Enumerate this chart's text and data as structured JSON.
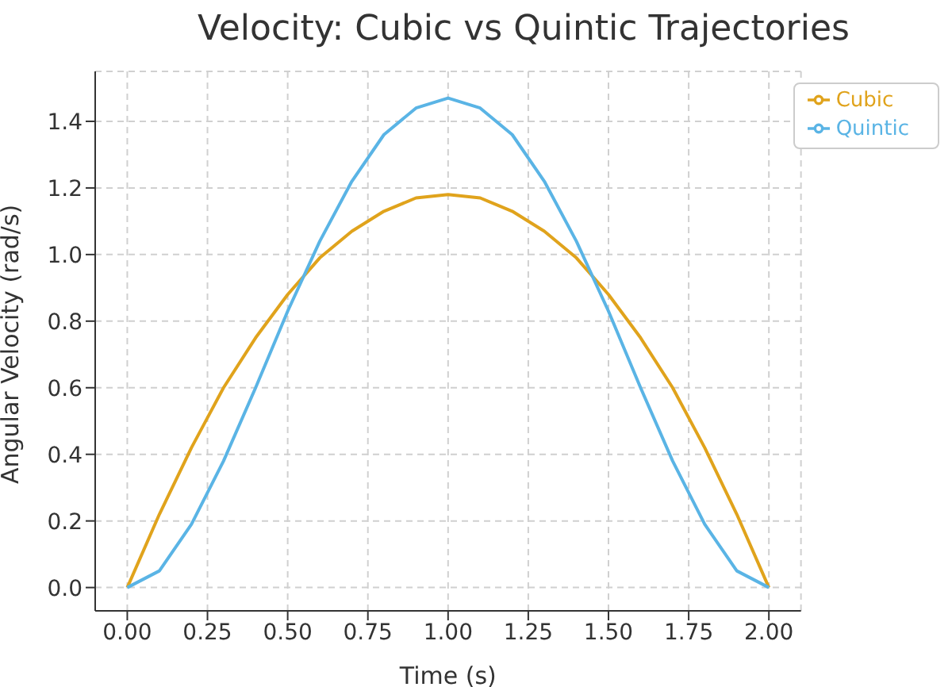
{
  "chart_data": {
    "type": "line",
    "title": "Velocity: Cubic vs Quintic Trajectories",
    "xlabel": "Time (s)",
    "ylabel": "Angular Velocity (rad/s)",
    "x": [
      0,
      0.1,
      0.2,
      0.3,
      0.4,
      0.5,
      0.6,
      0.7,
      0.8,
      0.9,
      1.0,
      1.1,
      1.2,
      1.3,
      1.4,
      1.5,
      1.6,
      1.7,
      1.8,
      1.9,
      2.0
    ],
    "series": [
      {
        "name": "Cubic",
        "color": "#e0a31c",
        "values": [
          0,
          0.22,
          0.42,
          0.6,
          0.75,
          0.88,
          0.99,
          1.07,
          1.13,
          1.17,
          1.18,
          1.17,
          1.13,
          1.07,
          0.99,
          0.88,
          0.75,
          0.6,
          0.42,
          0.22,
          0
        ]
      },
      {
        "name": "Quintic",
        "color": "#5ab4e5",
        "values": [
          0,
          0.05,
          0.19,
          0.38,
          0.6,
          0.83,
          1.04,
          1.22,
          1.36,
          1.44,
          1.47,
          1.44,
          1.36,
          1.22,
          1.04,
          0.83,
          0.6,
          0.38,
          0.19,
          0.05,
          0
        ]
      }
    ],
    "xlim": [
      -0.1,
      2.1
    ],
    "xticks": [
      {
        "value": 0,
        "label": "0.00"
      },
      {
        "value": 0.25,
        "label": "0.25"
      },
      {
        "value": 0.5,
        "label": "0.50"
      },
      {
        "value": 0.75,
        "label": "0.75"
      },
      {
        "value": 1,
        "label": "1.00"
      },
      {
        "value": 1.25,
        "label": "1.25"
      },
      {
        "value": 1.5,
        "label": "1.50"
      },
      {
        "value": 1.75,
        "label": "1.75"
      },
      {
        "value": 2,
        "label": "2.00"
      }
    ],
    "ylim": [
      -0.07,
      1.55
    ],
    "yticks": [
      {
        "value": 0,
        "label": "0.0"
      },
      {
        "value": 0.2,
        "label": "0.2"
      },
      {
        "value": 0.4,
        "label": "0.4"
      },
      {
        "value": 0.6,
        "label": "0.6"
      },
      {
        "value": 0.8,
        "label": "0.8"
      },
      {
        "value": 1,
        "label": "1.0"
      },
      {
        "value": 1.2,
        "label": "1.2"
      },
      {
        "value": 1.4,
        "label": "1.4"
      }
    ],
    "grid": true,
    "legend": "top right",
    "marker": "none",
    "line_style": "solid"
  }
}
